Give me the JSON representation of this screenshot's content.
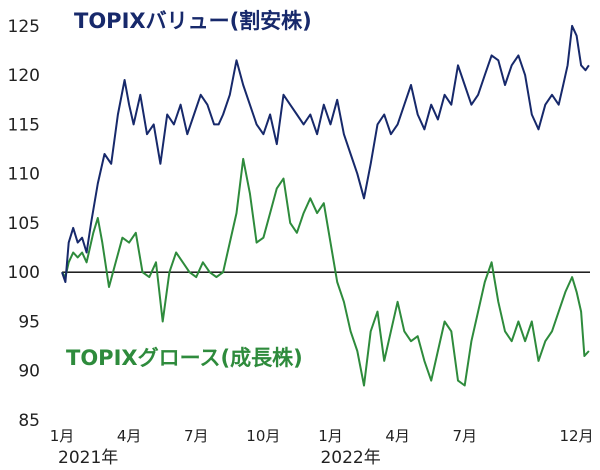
{
  "chart_data": {
    "type": "line",
    "yticks": [
      "85",
      "90",
      "95",
      "100",
      "105",
      "110",
      "115",
      "120",
      "125"
    ],
    "ylim": [
      85,
      126
    ],
    "baseline": 100,
    "xticks": [
      "1月",
      "4月",
      "7月",
      "10月",
      "1月",
      "4月",
      "7月",
      "12月"
    ],
    "years": [
      "2021年",
      "2022年"
    ],
    "x_month_index": [
      0,
      3,
      6,
      9,
      12,
      15,
      18,
      23
    ],
    "x_range": [
      0,
      23.6
    ],
    "year_month_index": [
      0,
      12
    ],
    "colors": {
      "value": "#17296b",
      "growth": "#2e8b3c",
      "baseline": "#000000"
    },
    "series": [
      {
        "name": "TOPIXバリュー(割安株)",
        "key": "value",
        "x": [
          0.0,
          0.15,
          0.3,
          0.5,
          0.7,
          0.9,
          1.1,
          1.3,
          1.6,
          1.9,
          2.2,
          2.5,
          2.8,
          3.0,
          3.2,
          3.5,
          3.8,
          4.1,
          4.4,
          4.7,
          5.0,
          5.3,
          5.6,
          5.9,
          6.2,
          6.5,
          6.8,
          7.0,
          7.2,
          7.5,
          7.8,
          8.1,
          8.4,
          8.7,
          9.0,
          9.3,
          9.6,
          9.9,
          10.2,
          10.5,
          10.8,
          11.1,
          11.4,
          11.7,
          12.0,
          12.3,
          12.6,
          12.9,
          13.2,
          13.5,
          13.8,
          14.1,
          14.4,
          14.7,
          15.0,
          15.3,
          15.6,
          15.9,
          16.2,
          16.5,
          16.8,
          17.1,
          17.4,
          17.7,
          18.0,
          18.3,
          18.6,
          18.9,
          19.2,
          19.5,
          19.8,
          20.1,
          20.4,
          20.7,
          21.0,
          21.3,
          21.6,
          21.9,
          22.2,
          22.4,
          22.6,
          22.8,
          23.0,
          23.2,
          23.4,
          23.55
        ],
        "values": [
          100,
          99.0,
          103,
          104.5,
          103,
          103.5,
          102,
          105,
          109,
          112,
          111,
          116,
          119.5,
          117,
          115,
          118,
          114,
          115,
          111,
          116,
          115,
          117,
          114,
          116,
          118,
          117,
          115,
          115,
          116,
          118,
          121.5,
          119,
          117,
          115,
          114,
          116,
          113,
          118,
          117,
          116,
          115,
          116,
          114,
          117,
          115,
          117.5,
          114,
          112,
          110,
          107.5,
          111,
          115,
          116,
          114,
          115,
          117,
          119,
          116,
          114.5,
          117,
          115.5,
          118,
          117,
          121,
          119,
          117,
          118,
          120,
          122,
          121.5,
          119,
          121,
          122,
          120,
          116,
          114.5,
          117,
          118,
          117,
          119,
          121,
          125,
          124,
          121,
          120.5,
          121
        ]
      },
      {
        "name": "TOPIXグロース(成長株)",
        "key": "growth",
        "x": [
          0.0,
          0.15,
          0.3,
          0.5,
          0.7,
          0.9,
          1.1,
          1.4,
          1.6,
          1.8,
          2.1,
          2.4,
          2.7,
          3.0,
          3.3,
          3.6,
          3.9,
          4.2,
          4.5,
          4.8,
          5.1,
          5.4,
          5.7,
          6.0,
          6.3,
          6.6,
          6.9,
          7.2,
          7.5,
          7.8,
          8.1,
          8.4,
          8.7,
          9.0,
          9.3,
          9.6,
          9.9,
          10.2,
          10.5,
          10.8,
          11.1,
          11.4,
          11.7,
          12.0,
          12.3,
          12.6,
          12.9,
          13.2,
          13.5,
          13.8,
          14.1,
          14.4,
          14.7,
          15.0,
          15.3,
          15.6,
          15.9,
          16.2,
          16.5,
          16.8,
          17.1,
          17.4,
          17.7,
          18.0,
          18.3,
          18.6,
          18.9,
          19.2,
          19.5,
          19.8,
          20.1,
          20.4,
          20.7,
          21.0,
          21.3,
          21.6,
          21.9,
          22.2,
          22.5,
          22.8,
          23.0,
          23.2,
          23.35,
          23.55
        ],
        "values": [
          100,
          99.5,
          101,
          102,
          101.5,
          102,
          101,
          104,
          105.5,
          103,
          98.5,
          101,
          103.5,
          103,
          104,
          100,
          99.5,
          101,
          95,
          100,
          102,
          101,
          100,
          99.5,
          101,
          100,
          99.5,
          100,
          103,
          106,
          111.5,
          108,
          103,
          103.5,
          106,
          108.5,
          109.5,
          105,
          104,
          106,
          107.5,
          106,
          107,
          103,
          99,
          97,
          94,
          92,
          88.5,
          94,
          96,
          91,
          94,
          97,
          94,
          93,
          93.5,
          91,
          89,
          92,
          95,
          94,
          89,
          88.5,
          93,
          96,
          99,
          101,
          97,
          94,
          93,
          95,
          93,
          95,
          91,
          93,
          94,
          96,
          98,
          99.5,
          98,
          96,
          91.5,
          92
        ]
      }
    ]
  }
}
